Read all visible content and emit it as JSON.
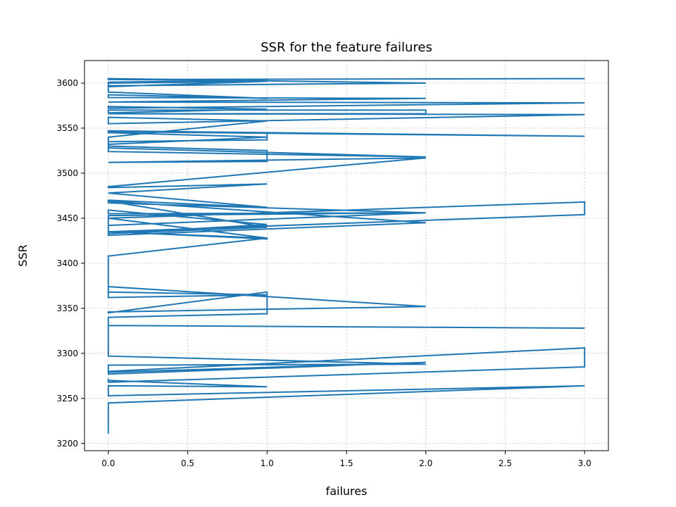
{
  "chart_data": {
    "type": "line",
    "title": "SSR for the feature failures",
    "xlabel": "failures",
    "ylabel": "SSR",
    "xlim": [
      -0.15,
      3.15
    ],
    "ylim": [
      3192,
      3625
    ],
    "xticks": [
      0.0,
      0.5,
      1.0,
      1.5,
      2.0,
      2.5,
      3.0
    ],
    "xtick_labels": [
      "0.0",
      "0.5",
      "1.0",
      "1.5",
      "2.0",
      "2.5",
      "3.0"
    ],
    "yticks": [
      3200,
      3250,
      3300,
      3350,
      3400,
      3450,
      3500,
      3550,
      3600
    ],
    "ytick_labels": [
      "3200",
      "3250",
      "3300",
      "3350",
      "3400",
      "3450",
      "3500",
      "3550",
      "3600"
    ],
    "grid": true,
    "color": "#1f77b4",
    "series": [
      {
        "x": [
          0,
          0,
          3,
          0,
          0,
          1,
          0,
          0,
          0,
          3,
          3,
          0,
          0,
          2,
          0,
          0,
          2,
          0,
          0,
          3,
          0,
          0,
          0,
          1,
          1,
          0,
          0,
          2,
          0,
          0,
          1,
          0,
          0,
          0,
          1,
          0,
          3,
          3,
          0,
          0,
          2,
          0,
          0,
          1,
          0,
          0,
          2,
          0,
          1,
          0,
          0,
          0,
          1,
          1,
          0,
          0,
          2,
          0,
          0,
          1,
          0,
          1,
          0,
          0,
          2,
          0,
          0,
          1,
          1,
          0,
          0,
          1,
          0,
          0,
          3,
          0,
          1,
          1,
          0,
          0,
          2,
          0,
          0,
          1,
          0,
          0,
          3,
          0,
          2,
          2,
          0,
          0,
          1,
          0,
          0,
          3,
          0,
          0,
          2,
          0,
          0,
          1,
          0,
          0,
          1,
          0,
          0,
          2,
          0,
          0,
          3,
          0,
          0,
          1,
          0,
          0
        ],
        "y": [
          3211,
          3245,
          3264,
          3253,
          3264,
          3263,
          3270,
          3272,
          3268,
          3285,
          3306,
          3280,
          3277,
          3290,
          3279,
          3287,
          3288,
          3297,
          3331,
          3328,
          3331,
          3338,
          3340,
          3344,
          3368,
          3345,
          3346,
          3352,
          3374,
          3362,
          3365,
          3368,
          3385,
          3408,
          3428,
          3435,
          3454,
          3468,
          3450,
          3453,
          3456,
          3455,
          3459,
          3443,
          3433,
          3431,
          3445,
          3469,
          3440,
          3433,
          3442,
          3450,
          3428,
          3427,
          3435,
          3442,
          3456,
          3467,
          3470,
          3462,
          3478,
          3488,
          3484,
          3485,
          3517,
          3512,
          3512,
          3513,
          3525,
          3530,
          3532,
          3540,
          3545,
          3547,
          3541,
          3546,
          3545,
          3537,
          3535,
          3528,
          3518,
          3524,
          3540,
          3558,
          3562,
          3555,
          3565,
          3566,
          3566,
          3570,
          3570,
          3567,
          3571,
          3574,
          3572,
          3578,
          3579,
          3579,
          3583,
          3584,
          3587,
          3583,
          3590,
          3596,
          3602,
          3600,
          3597,
          3600,
          3605,
          3604,
          3605,
          3604,
          3604,
          3603,
          3601,
          3598
        ]
      }
    ]
  }
}
